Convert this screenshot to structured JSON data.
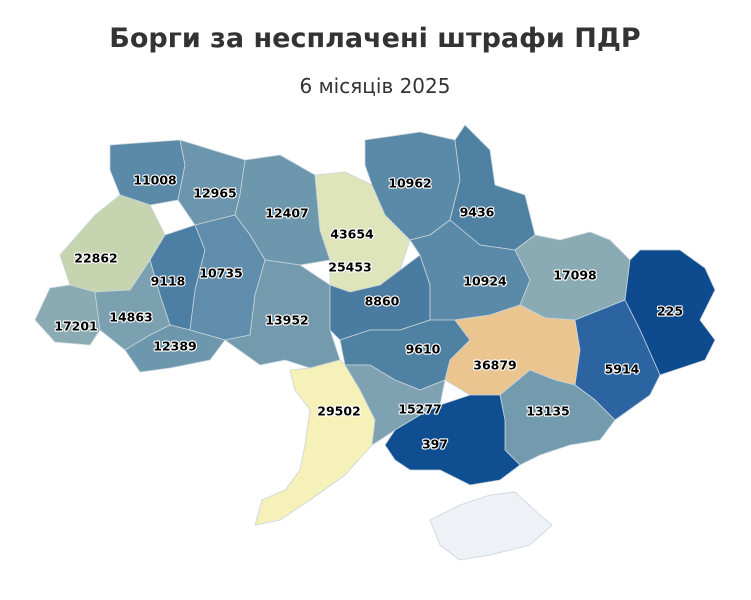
{
  "title": "Борги за несплачені штрафи ПДР",
  "subtitle": "6 місяців 2025",
  "regions": [
    {
      "value": 11008,
      "color": "#5b8aa8"
    },
    {
      "value": 12965,
      "color": "#6b96ad"
    },
    {
      "value": 12407,
      "color": "#6d97ac"
    },
    {
      "value": 43654,
      "color": "#c98f8a"
    },
    {
      "value": 25453,
      "color": "#dfe5bb"
    },
    {
      "value": 10962,
      "color": "#5b8aa8"
    },
    {
      "value": 9436,
      "color": "#4f81a3"
    },
    {
      "value": 22862,
      "color": "#c6d5b0"
    },
    {
      "value": 9118,
      "color": "#4d7ea3"
    },
    {
      "value": 10735,
      "color": "#5f8dab"
    },
    {
      "value": 17201,
      "color": "#8babb4"
    },
    {
      "value": 14863,
      "color": "#7ba0b0"
    },
    {
      "value": 12389,
      "color": "#6d97ac"
    },
    {
      "value": 13952,
      "color": "#749aae"
    },
    {
      "value": 8860,
      "color": "#4a7ba1"
    },
    {
      "value": 10924,
      "color": "#5b8aa8"
    },
    {
      "value": 17098,
      "color": "#8babb4"
    },
    {
      "value": 225,
      "color": "#0d4b8e"
    },
    {
      "value": 9610,
      "color": "#4f81a3"
    },
    {
      "value": 36879,
      "color": "#ebc590"
    },
    {
      "value": 5914,
      "color": "#2b64a0"
    },
    {
      "value": 29502,
      "color": "#f6f1b9"
    },
    {
      "value": 15277,
      "color": "#7ea2b1"
    },
    {
      "value": 13135,
      "color": "#749aae"
    },
    {
      "value": 397,
      "color": "#0f4f91"
    }
  ]
}
